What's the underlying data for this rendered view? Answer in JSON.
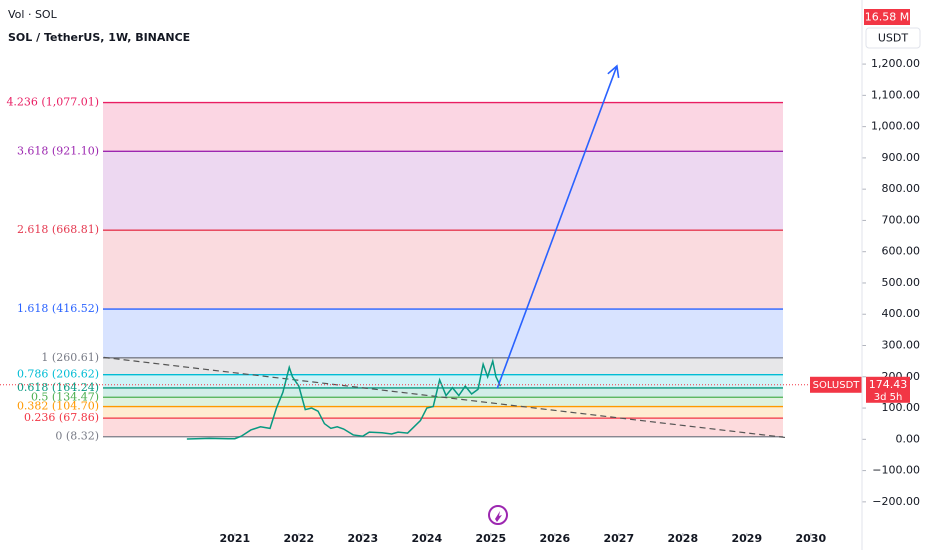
{
  "chart_data": {
    "type": "line",
    "title": "SOL / TetherUS, 1W, BINANCE",
    "volume_label": "Vol · SOL",
    "volume_value": "16.58 M",
    "currency": "USDT",
    "xlim": [
      2017.33,
      2030.8
    ],
    "xticks": [
      2021,
      2022,
      2023,
      2024,
      2025,
      2026,
      2027,
      2028,
      2029,
      2030
    ],
    "ylim": [
      -290,
      1325
    ],
    "yticks": [
      {
        "value": 1200,
        "label": "1,200.00"
      },
      {
        "value": 1100,
        "label": "1,100.00"
      },
      {
        "value": 1000,
        "label": "1,000.00"
      },
      {
        "value": 900,
        "label": "900.00"
      },
      {
        "value": 800,
        "label": "800.00"
      },
      {
        "value": 700,
        "label": "700.00"
      },
      {
        "value": 600,
        "label": "600.00"
      },
      {
        "value": 500,
        "label": "500.00"
      },
      {
        "value": 400,
        "label": "400.00"
      },
      {
        "value": 300,
        "label": "300.00"
      },
      {
        "value": 200,
        "label": "200.00"
      },
      {
        "value": 100,
        "label": "100.00"
      },
      {
        "value": 0,
        "label": "0.00"
      },
      {
        "value": -100,
        "label": "−100.00"
      },
      {
        "value": -200,
        "label": "−200.00"
      }
    ],
    "x": [
      2020.25,
      2020.6,
      2020.9,
      2021.0,
      2021.1,
      2021.25,
      2021.4,
      2021.55,
      2021.65,
      2021.75,
      2021.85,
      2021.9,
      2022.0,
      2022.1,
      2022.2,
      2022.3,
      2022.4,
      2022.5,
      2022.6,
      2022.7,
      2022.85,
      2023.0,
      2023.1,
      2023.3,
      2023.45,
      2023.55,
      2023.7,
      2023.8,
      2023.9,
      2024.0,
      2024.1,
      2024.2,
      2024.3,
      2024.4,
      2024.5,
      2024.6,
      2024.7,
      2024.8,
      2024.88,
      2024.95,
      2025.03,
      2025.08,
      2025.15
    ],
    "series": [
      {
        "name": "SOLUSDT",
        "color": "#089981",
        "values": [
          1,
          3,
          2,
          2,
          10,
          30,
          40,
          35,
          100,
          150,
          230,
          200,
          170,
          95,
          100,
          90,
          50,
          35,
          40,
          33,
          14,
          10,
          23,
          21,
          17,
          23,
          20,
          40,
          60,
          100,
          105,
          190,
          140,
          165,
          140,
          170,
          145,
          160,
          240,
          200,
          250,
          200,
          170
        ]
      }
    ],
    "levels": [
      {
        "price": 1077.01,
        "label": "4.236 (1,077.01)",
        "color": "#e91e63"
      },
      {
        "price": 921.1,
        "label": "3.618 (921.10)",
        "color": "#9c27b0"
      },
      {
        "price": 668.81,
        "label": "2.618 (668.81)",
        "color": "#e53950"
      },
      {
        "price": 416.52,
        "label": "1.618 (416.52)",
        "color": "#2962ff"
      },
      {
        "price": 260.61,
        "label": "1 (260.61)",
        "color": "#787b86"
      },
      {
        "price": 206.62,
        "label": "0.786 (206.62)",
        "color": "#00bcd4"
      },
      {
        "price": 164.24,
        "label": "0.618 (164.24)",
        "color": "#089981"
      },
      {
        "price": 134.47,
        "label": "0.5 (134.47)",
        "color": "#4caf50"
      },
      {
        "price": 104.7,
        "label": "0.382 (104.70)",
        "color": "#ff9800"
      },
      {
        "price": 67.86,
        "label": "0.236 (67.86)",
        "color": "#f23645"
      },
      {
        "price": 8.32,
        "label": "0 (8.32)",
        "color": "#787b86"
      }
    ],
    "trendline": {
      "from": [
        2018.95,
        262
      ],
      "to": [
        2029.6,
        6
      ]
    },
    "projection": {
      "from": [
        2025.1,
        163
      ],
      "to": [
        2026.97,
        1194
      ]
    },
    "price_tag": {
      "symbol": "SOLUSDT",
      "price": 174.43,
      "label": "174.43",
      "countdown": "3d 5h"
    }
  }
}
